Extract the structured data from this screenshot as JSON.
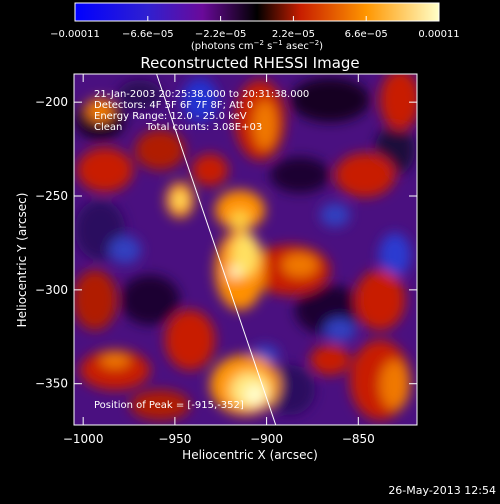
{
  "chart_data": {
    "type": "heatmap",
    "title": "Reconstructed RHESSI Image",
    "xlabel": "Heliocentric X (arcsec)",
    "ylabel": "Heliocentric Y (arcsec)",
    "xlim": [
      -1005,
      -818
    ],
    "ylim": [
      -372,
      -185
    ],
    "x_ticks": [
      -1000,
      -950,
      -900,
      -850
    ],
    "x_tick_labels": [
      "-1000",
      "-950",
      "-900",
      "-850"
    ],
    "y_ticks": [
      -200,
      -250,
      -300,
      -350
    ],
    "y_tick_labels": [
      "-200",
      "-250",
      "-300",
      "-350"
    ],
    "colorbar": {
      "range": [
        -0.00011,
        0.00011
      ],
      "tick_labels": [
        "-0.00011",
        "-6.6e-05",
        "-2.2e-05",
        "2.2e-05",
        "6.6e-05",
        "0.00011"
      ],
      "label": "(photons cm^-2 s^-1 asec^-2)",
      "colors": [
        "#0000ff",
        "#6a0a9a",
        "#000000",
        "#c81e00",
        "#ff9600",
        "#ffffc8"
      ]
    },
    "annotations": [
      "21-Jan-2003 20:25:38.000 to 20:31:38.000",
      "Detectors: 4F 5F 6F 7F 8F; Att 0",
      "Energy Range: 12.0 - 25.0 keV",
      "Clean",
      "Total counts: 3.08E+03",
      "Position of Peak = [-915,-352]"
    ],
    "peak": [
      -915,
      -352
    ],
    "limb_line": [
      [
        -960,
        -185
      ],
      [
        -895,
        -372
      ]
    ],
    "grid": false
  },
  "footer_timestamp": "26-May-2013 12:54"
}
